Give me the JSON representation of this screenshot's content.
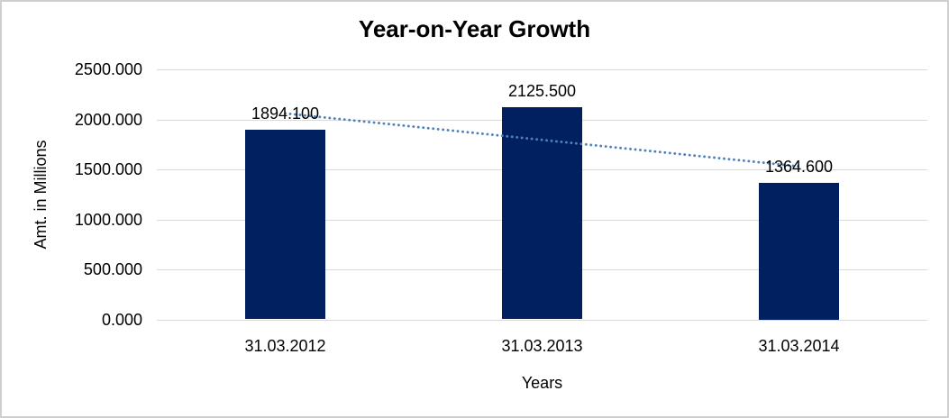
{
  "window": {
    "background": "#ffffff",
    "border_color": "#cfcfcf"
  },
  "chart": {
    "title": "Year-on-Year Growth",
    "y_axis_title": "Amt. in Millions",
    "x_axis_title": "Years"
  },
  "chart_data": {
    "type": "bar",
    "title": "Year-on-Year Growth",
    "xlabel": "Years",
    "ylabel": "Amt. in Millions",
    "categories": [
      "31.03.2012",
      "31.03.2013",
      "31.03.2014"
    ],
    "values": [
      1894.1,
      2125.5,
      1364.6
    ],
    "value_labels": [
      "1894.100",
      "2125.500",
      "1364.600"
    ],
    "ylim": [
      0,
      2500
    ],
    "ytick_labels": [
      "2500.000",
      "2000.000",
      "1500.000",
      "1000.000",
      "500.000",
      "0.000"
    ],
    "grid": true,
    "legend": false,
    "bar_color": "#002060",
    "gridline_color": "#D9D9D9",
    "trendline": {
      "type": "linear",
      "style": "dotted",
      "color": "#4F81BD",
      "endpoints": [
        2059.483,
        1529.983
      ]
    }
  }
}
